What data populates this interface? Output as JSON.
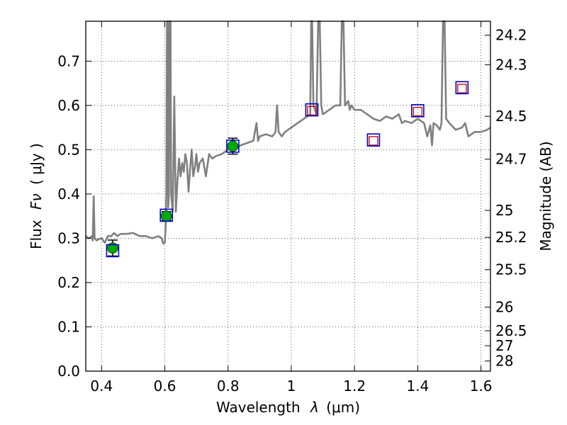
{
  "chart_data": {
    "type": "line",
    "xlabel_text": "Wavelength",
    "xlabel_symbol": "λ",
    "xlabel_unit": "(μm)",
    "ylabel_text": "Flux",
    "ylabel_symbol": "Fν",
    "ylabel_unit": "( μJy )",
    "y2label": "Magnitude (AB)",
    "xlim": [
      0.35,
      1.63
    ],
    "ylim": [
      0.0,
      0.79
    ],
    "grid": true,
    "grid_style": "dotted",
    "x_ticks": [
      {
        "value": 0.4,
        "label": "0.4"
      },
      {
        "value": 0.6,
        "label": "0.6"
      },
      {
        "value": 0.8,
        "label": "0.8"
      },
      {
        "value": 1.0,
        "label": "1"
      },
      {
        "value": 1.2,
        "label": "1.2"
      },
      {
        "value": 1.4,
        "label": "1.4"
      },
      {
        "value": 1.6,
        "label": "1.6"
      }
    ],
    "y_ticks": [
      {
        "value": 0.0,
        "label": "0.0"
      },
      {
        "value": 0.1,
        "label": "0.1"
      },
      {
        "value": 0.2,
        "label": "0.2"
      },
      {
        "value": 0.3,
        "label": "0.3"
      },
      {
        "value": 0.4,
        "label": "0.4"
      },
      {
        "value": 0.5,
        "label": "0.5"
      },
      {
        "value": 0.6,
        "label": "0.6"
      },
      {
        "value": 0.7,
        "label": "0.7"
      }
    ],
    "y2_ticks": [
      {
        "mag": 24.2,
        "label": "24.2"
      },
      {
        "mag": 24.3,
        "label": "24.3"
      },
      {
        "mag": 24.5,
        "label": "24.5"
      },
      {
        "mag": 24.7,
        "label": "24.7"
      },
      {
        "mag": 25.0,
        "label": "25"
      },
      {
        "mag": 25.2,
        "label": "25.2"
      },
      {
        "mag": 25.5,
        "label": "25.5"
      },
      {
        "mag": 26.0,
        "label": "26"
      },
      {
        "mag": 26.5,
        "label": "26.5"
      },
      {
        "mag": 27.0,
        "label": "27"
      },
      {
        "mag": 28.0,
        "label": "28"
      }
    ],
    "spectrum": {
      "color": "#808080",
      "points": [
        [
          0.35,
          0.305
        ],
        [
          0.36,
          0.3
        ],
        [
          0.37,
          0.305
        ],
        [
          0.372,
          0.295
        ],
        [
          0.375,
          0.395
        ],
        [
          0.378,
          0.3
        ],
        [
          0.385,
          0.295
        ],
        [
          0.39,
          0.298
        ],
        [
          0.4,
          0.3
        ],
        [
          0.41,
          0.29
        ],
        [
          0.42,
          0.305
        ],
        [
          0.43,
          0.305
        ],
        [
          0.44,
          0.312
        ],
        [
          0.45,
          0.305
        ],
        [
          0.46,
          0.31
        ],
        [
          0.48,
          0.31
        ],
        [
          0.5,
          0.312
        ],
        [
          0.52,
          0.305
        ],
        [
          0.54,
          0.305
        ],
        [
          0.56,
          0.3
        ],
        [
          0.58,
          0.305
        ],
        [
          0.59,
          0.3
        ],
        [
          0.595,
          0.288
        ],
        [
          0.6,
          0.29
        ],
        [
          0.603,
          0.33
        ],
        [
          0.605,
          0.41
        ],
        [
          0.607,
          0.79
        ],
        [
          0.609,
          0.79
        ],
        [
          0.611,
          0.37
        ],
        [
          0.613,
          0.4
        ],
        [
          0.615,
          0.79
        ],
        [
          0.618,
          0.79
        ],
        [
          0.62,
          0.4
        ],
        [
          0.625,
          0.36
        ],
        [
          0.63,
          0.62
        ],
        [
          0.635,
          0.36
        ],
        [
          0.64,
          0.43
        ],
        [
          0.645,
          0.48
        ],
        [
          0.65,
          0.44
        ],
        [
          0.655,
          0.47
        ],
        [
          0.66,
          0.45
        ],
        [
          0.665,
          0.49
        ],
        [
          0.67,
          0.47
        ],
        [
          0.675,
          0.405
        ],
        [
          0.68,
          0.455
        ],
        [
          0.685,
          0.5
        ],
        [
          0.69,
          0.44
        ],
        [
          0.695,
          0.46
        ],
        [
          0.7,
          0.49
        ],
        [
          0.705,
          0.45
        ],
        [
          0.71,
          0.47
        ],
        [
          0.72,
          0.48
        ],
        [
          0.73,
          0.44
        ],
        [
          0.74,
          0.49
        ],
        [
          0.75,
          0.48
        ],
        [
          0.76,
          0.485
        ],
        [
          0.78,
          0.49
        ],
        [
          0.79,
          0.495
        ],
        [
          0.8,
          0.5
        ],
        [
          0.81,
          0.505
        ],
        [
          0.82,
          0.51
        ],
        [
          0.83,
          0.505
        ],
        [
          0.84,
          0.51
        ],
        [
          0.86,
          0.515
        ],
        [
          0.88,
          0.52
        ],
        [
          0.89,
          0.56
        ],
        [
          0.895,
          0.52
        ],
        [
          0.9,
          0.53
        ],
        [
          0.92,
          0.535
        ],
        [
          0.94,
          0.53
        ],
        [
          0.95,
          0.54
        ],
        [
          0.955,
          0.6
        ],
        [
          0.96,
          0.54
        ],
        [
          0.97,
          0.53
        ],
        [
          0.98,
          0.54
        ],
        [
          1.0,
          0.55
        ],
        [
          1.02,
          0.56
        ],
        [
          1.04,
          0.57
        ],
        [
          1.05,
          0.575
        ],
        [
          1.06,
          0.58
        ],
        [
          1.063,
          0.79
        ],
        [
          1.066,
          0.79
        ],
        [
          1.07,
          0.6
        ],
        [
          1.08,
          0.58
        ],
        [
          1.085,
          0.79
        ],
        [
          1.09,
          0.79
        ],
        [
          1.095,
          0.6
        ],
        [
          1.1,
          0.58
        ],
        [
          1.12,
          0.59
        ],
        [
          1.14,
          0.6
        ],
        [
          1.155,
          0.6
        ],
        [
          1.16,
          0.79
        ],
        [
          1.165,
          0.79
        ],
        [
          1.17,
          0.6
        ],
        [
          1.18,
          0.61
        ],
        [
          1.185,
          0.59
        ],
        [
          1.19,
          0.6
        ],
        [
          1.2,
          0.59
        ],
        [
          1.22,
          0.59
        ],
        [
          1.24,
          0.58
        ],
        [
          1.26,
          0.57
        ],
        [
          1.28,
          0.565
        ],
        [
          1.3,
          0.575
        ],
        [
          1.32,
          0.57
        ],
        [
          1.34,
          0.58
        ],
        [
          1.35,
          0.56
        ],
        [
          1.36,
          0.565
        ],
        [
          1.38,
          0.56
        ],
        [
          1.4,
          0.57
        ],
        [
          1.42,
          0.56
        ],
        [
          1.43,
          0.53
        ],
        [
          1.44,
          0.555
        ],
        [
          1.445,
          0.51
        ],
        [
          1.45,
          0.56
        ],
        [
          1.46,
          0.555
        ],
        [
          1.47,
          0.545
        ],
        [
          1.475,
          0.56
        ],
        [
          1.48,
          0.79
        ],
        [
          1.485,
          0.79
        ],
        [
          1.49,
          0.57
        ],
        [
          1.5,
          0.56
        ],
        [
          1.52,
          0.545
        ],
        [
          1.54,
          0.55
        ],
        [
          1.55,
          0.56
        ],
        [
          1.56,
          0.53
        ],
        [
          1.58,
          0.54
        ],
        [
          1.6,
          0.54
        ],
        [
          1.62,
          0.545
        ],
        [
          1.63,
          0.55
        ]
      ]
    },
    "photometry_detected": {
      "marker": "circle",
      "color": "#00aa00",
      "points": [
        {
          "x": 0.435,
          "y": 0.278,
          "err": 0.018
        },
        {
          "x": 0.605,
          "y": 0.35,
          "err": 0.01
        },
        {
          "x": 0.815,
          "y": 0.508,
          "err": 0.018
        }
      ]
    },
    "model_points": {
      "marker": "square",
      "color": "#0000cc",
      "points": [
        {
          "x": 0.435,
          "y": 0.272
        },
        {
          "x": 0.605,
          "y": 0.352
        },
        {
          "x": 0.815,
          "y": 0.508
        },
        {
          "x": 1.065,
          "y": 0.59
        },
        {
          "x": 1.26,
          "y": 0.522
        },
        {
          "x": 1.4,
          "y": 0.588
        },
        {
          "x": 1.54,
          "y": 0.64
        }
      ]
    },
    "photometry_undetected": {
      "marker": "square-open",
      "color": "#cc0000",
      "points": [
        {
          "x": 1.065,
          "y": 0.588
        },
        {
          "x": 1.26,
          "y": 0.52
        },
        {
          "x": 1.4,
          "y": 0.586
        },
        {
          "x": 1.54,
          "y": 0.638
        }
      ]
    }
  }
}
